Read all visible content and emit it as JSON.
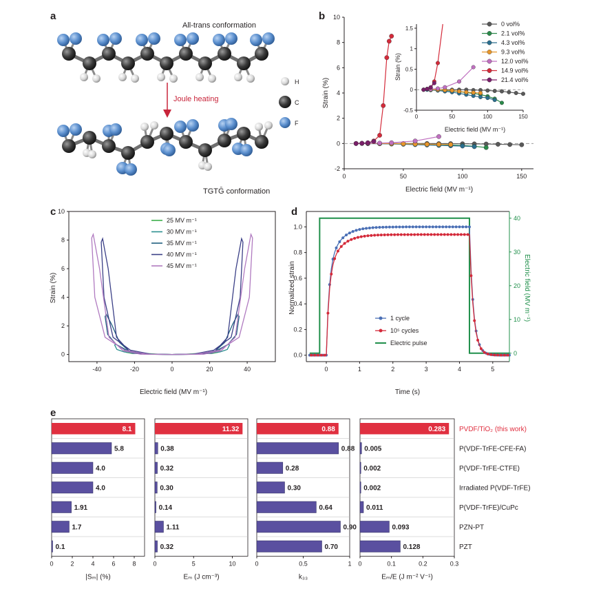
{
  "panel_a": {
    "label": "a",
    "top_caption": "All-trans conformation",
    "arrow_label": "Joule heating",
    "bottom_caption": "TGTḠ conformation",
    "atom_legend": [
      "H",
      "C",
      "F"
    ],
    "atom_colors": {
      "H": "#e6e6e6",
      "C": "#3a3a3a",
      "F": "#5b8fce"
    }
  },
  "chart_data": [
    {
      "id": "b",
      "label": "b",
      "type": "line",
      "xlabel": "Electric field (MV m⁻¹)",
      "ylabel": "Strain (%)",
      "xlim": [
        0,
        160
      ],
      "ylim": [
        -2,
        10
      ],
      "xticks": [
        0,
        50,
        100,
        150
      ],
      "yticks": [
        -2,
        0,
        2,
        4,
        6,
        8,
        10
      ],
      "series": [
        {
          "name": "0 vol%",
          "color": "#595959",
          "x": [
            20,
            30,
            40,
            50,
            60,
            70,
            80,
            90,
            100,
            110,
            120,
            130,
            140,
            150
          ],
          "y": [
            0,
            0,
            0,
            0,
            0,
            0,
            -0.01,
            -0.01,
            -0.02,
            -0.03,
            -0.04,
            -0.06,
            -0.08,
            -0.1
          ]
        },
        {
          "name": "2.1 vol%",
          "color": "#2a8a4a",
          "x": [
            20,
            30,
            40,
            50,
            60,
            70,
            80,
            90,
            100,
            110,
            120
          ],
          "y": [
            0,
            -0.01,
            -0.02,
            -0.03,
            -0.05,
            -0.07,
            -0.09,
            -0.12,
            -0.16,
            -0.22,
            -0.32
          ]
        },
        {
          "name": "4.3 vol%",
          "color": "#2a6f8f",
          "x": [
            15,
            20,
            30,
            40,
            50,
            60,
            70,
            80,
            90,
            100,
            110
          ],
          "y": [
            0,
            -0.01,
            -0.02,
            -0.04,
            -0.06,
            -0.09,
            -0.12,
            -0.15,
            -0.18,
            -0.2,
            -0.25
          ]
        },
        {
          "name": "9.3 vol%",
          "color": "#e8962a",
          "x": [
            20,
            30,
            40,
            50,
            60,
            70,
            80,
            90
          ],
          "y": [
            0,
            0,
            -0.01,
            -0.02,
            -0.04,
            -0.06,
            -0.07,
            -0.08
          ]
        },
        {
          "name": "12.0 vol%",
          "color": "#c070c0",
          "x": [
            10,
            20,
            30,
            40,
            60,
            80
          ],
          "y": [
            0,
            0.01,
            0.03,
            0.06,
            0.2,
            0.55
          ]
        },
        {
          "name": "14.9 vol%",
          "color": "#d42a3a",
          "x": [
            10,
            15,
            20,
            25,
            30,
            33,
            36,
            38,
            40
          ],
          "y": [
            0,
            0.02,
            0.05,
            0.2,
            0.65,
            3.0,
            6.8,
            8.1,
            8.5
          ]
        },
        {
          "name": "21.4 vol%",
          "color": "#7a1f6a",
          "x": [
            10,
            15,
            20,
            25
          ],
          "y": [
            0,
            0.02,
            0.06,
            0.16
          ]
        }
      ],
      "inset": {
        "xlabel": "Electric field (MV m⁻¹)",
        "ylabel": "Strain (%)",
        "xlim": [
          0,
          150
        ],
        "ylim": [
          -0.5,
          1.6
        ],
        "xticks": [
          0,
          50,
          100,
          150
        ],
        "yticks": [
          -0.5,
          0,
          0.5,
          1.0,
          1.5
        ]
      }
    },
    {
      "id": "c",
      "label": "c",
      "type": "line",
      "xlabel": "Electric field (MV m⁻¹)",
      "ylabel": "Strain (%)",
      "xlim": [
        -55,
        55
      ],
      "ylim": [
        -0.5,
        10
      ],
      "xticks": [
        -40,
        -20,
        0,
        20,
        40
      ],
      "yticks": [
        0,
        2,
        4,
        6,
        8,
        10
      ],
      "series": [
        {
          "name": "25 MV m⁻¹",
          "color": "#3cae4a",
          "peak_field": 25,
          "peak_strain": 0.3
        },
        {
          "name": "30 MV m⁻¹",
          "color": "#2a8f8f",
          "peak_field": 30,
          "peak_strain": 0.7
        },
        {
          "name": "35 MV m⁻¹",
          "color": "#1f5f7f",
          "peak_field": 35,
          "peak_strain": 2.8
        },
        {
          "name": "40 MV m⁻¹",
          "color": "#3a3f86",
          "peak_field": 37,
          "peak_strain": 8.1
        },
        {
          "name": "45 MV m⁻¹",
          "color": "#b07ac0",
          "peak_field": 42,
          "peak_strain": 8.4
        }
      ]
    },
    {
      "id": "d",
      "label": "d",
      "type": "line",
      "xlabel": "Time (s)",
      "ylabel": "Normalized strain",
      "y2label": "Electric field (MV m⁻¹)",
      "xlim": [
        -0.6,
        5.5
      ],
      "ylim": [
        -0.05,
        1.12
      ],
      "y2lim": [
        -2.5,
        42
      ],
      "xticks": [
        0,
        1,
        2,
        3,
        4,
        5
      ],
      "yticks": [
        0,
        0.2,
        0.4,
        0.6,
        0.8,
        1.0
      ],
      "y2ticks": [
        0,
        10,
        20,
        30,
        40
      ],
      "series": [
        {
          "name": "1 cycle",
          "color": "#4a6fb5",
          "plateau": 1.0
        },
        {
          "name": "10⁵ cycles",
          "color": "#d42a3a",
          "plateau": 0.94
        },
        {
          "name": "Electric pulse",
          "color": "#1f8f4a",
          "pulse": {
            "start": -0.2,
            "end": 4.3,
            "value": 40
          }
        }
      ]
    },
    {
      "id": "e",
      "label": "e",
      "type": "bar",
      "categories": [
        "PVDF/TiO₂ (this work)",
        "P(VDF-TrFE-CFE-FA)",
        "P(VDF-TrFE-CTFE)",
        "Irradiated P(VDF-TrFE)",
        "P(VDF-TrFE)/CuPc",
        "PZN-PT",
        "PZT"
      ],
      "highlight_color": "#e03040",
      "bar_color": "#5a50a0",
      "panels": [
        {
          "xlabel": "|Sₘ| (%)",
          "xlim": [
            0,
            9
          ],
          "xticks": [
            0,
            2,
            4,
            6,
            8
          ],
          "values": [
            8.1,
            5.8,
            4.0,
            4.0,
            1.91,
            1.7,
            0.1
          ],
          "labels": [
            "8.1",
            "5.8",
            "4.0",
            "4.0",
            "1.91",
            "1.7",
            "0.1"
          ]
        },
        {
          "xlabel": "Eₘ (J cm⁻³)",
          "xlim": [
            0,
            12
          ],
          "xticks": [
            0,
            5,
            10
          ],
          "values": [
            11.32,
            0.38,
            0.32,
            0.3,
            0.14,
            1.11,
            0.32
          ],
          "labels": [
            "11.32",
            "0.38",
            "0.32",
            "0.30",
            "0.14",
            "1.11",
            "0.32"
          ]
        },
        {
          "xlabel": "k₃₃",
          "xlim": [
            0,
            1.0
          ],
          "xticks": [
            0,
            0.5,
            1.0
          ],
          "values": [
            0.88,
            0.88,
            0.28,
            0.3,
            0.64,
            0.9,
            0.7
          ],
          "labels": [
            "0.88",
            "0.88",
            "0.28",
            "0.30",
            "0.64",
            "0.90",
            "0.70"
          ]
        },
        {
          "xlabel": "Eₘ/E (J m⁻² V⁻¹)",
          "xlim": [
            0,
            0.3
          ],
          "xticks": [
            0,
            0.1,
            0.2,
            0.3
          ],
          "values": [
            0.283,
            0.005,
            0.002,
            0.002,
            0.011,
            0.093,
            0.128
          ],
          "labels": [
            "0.283",
            "0.005",
            "0.002",
            "0.002",
            "0.011",
            "0.093",
            "0.128"
          ]
        }
      ]
    }
  ]
}
